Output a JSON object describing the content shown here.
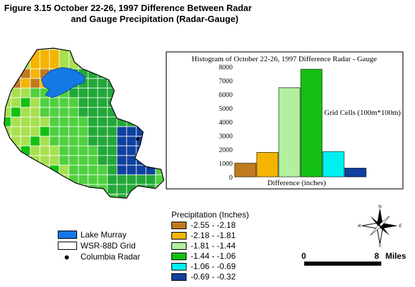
{
  "figure": {
    "title_line1": "Figure 3.15  October 22-26, 1997 Difference Between Radar",
    "title_line2": "and Gauge Precipitation (Radar-Gauge)"
  },
  "colors": {
    "c1": "#c07a1e",
    "c2": "#f5b400",
    "c3": "#b2f0a0",
    "c4": "#14c014",
    "c5": "#00f0f0",
    "c6": "#1040a0",
    "lake": "#1478e6",
    "land_light": "#a8e050",
    "land_mid": "#50d040",
    "land_dark": "#22a838"
  },
  "chart_data": {
    "type": "bar",
    "title": "Histogram of October 22-26, 1997 Difference Radar - Gauge",
    "xlabel": "Difference (inches)",
    "ylabel": "Grid Cells (100m*100m)",
    "ylim": [
      0,
      8000
    ],
    "yticks": [
      0,
      1000,
      2000,
      3000,
      4000,
      5000,
      6000,
      7000,
      8000
    ],
    "grid": false,
    "series": [
      {
        "values": [
          1000,
          1780,
          6480,
          7820,
          1840,
          640
        ]
      }
    ]
  },
  "legend_features": [
    {
      "label": "Lake Murray",
      "kind": "swatch",
      "color": "#1478e6"
    },
    {
      "label": "WSR-88D Grid",
      "kind": "swatch",
      "color": "#ffffff"
    },
    {
      "label": "Columbia Radar",
      "kind": "dot",
      "color": "#000000"
    }
  ],
  "legend_precip": {
    "title": "Precipitation (Inches)",
    "items": [
      {
        "label": "-2.55 - -2.18",
        "color": "#c07a1e"
      },
      {
        "label": "-2.18 - -1.81",
        "color": "#f5b400"
      },
      {
        "label": "-1.81 - -1.44",
        "color": "#b2f0a0"
      },
      {
        "label": "-1.44 - -1.06",
        "color": "#14c014"
      },
      {
        "label": "-1.06 - -0.69",
        "color": "#00f0f0"
      },
      {
        "label": "-0.69 - -0.32",
        "color": "#1040a0"
      }
    ]
  },
  "compass": {
    "n": "N",
    "s": "S",
    "e": "E",
    "w": "W"
  },
  "scale": {
    "start": "0",
    "end": "8",
    "unit": "Miles"
  }
}
